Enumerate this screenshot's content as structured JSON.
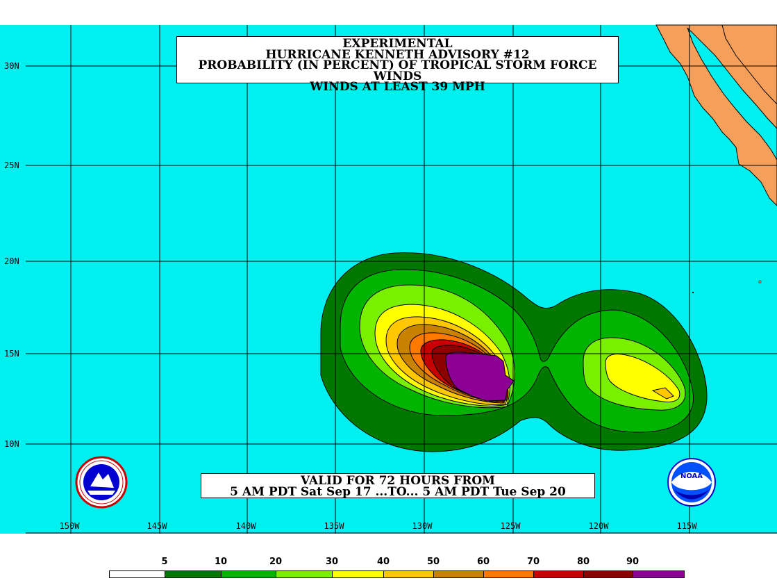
{
  "title": {
    "line1": "EXPERIMENTAL",
    "line2": "HURRICANE KENNETH ADVISORY #12",
    "line3": "PROBABILITY (IN PERCENT) OF TROPICAL STORM FORCE WINDS",
    "line4": "WINDS AT LEAST 39 MPH"
  },
  "valid": {
    "line1": "VALID FOR 72 HOURS FROM",
    "line2": "5 AM PDT Sat Sep 17 ...TO... 5 AM PDT Tue Sep 20"
  },
  "latitude_labels": [
    "30N",
    "25N",
    "20N",
    "15N",
    "10N"
  ],
  "longitude_labels": [
    "150W",
    "145W",
    "140W",
    "135W",
    "130W",
    "125W",
    "120W",
    "115W"
  ],
  "legend": {
    "thresholds": [
      "5",
      "10",
      "20",
      "30",
      "40",
      "50",
      "60",
      "70",
      "80",
      "90"
    ],
    "colors": [
      "#ffffff",
      "#007800",
      "#00b400",
      "#78f000",
      "#ffff00",
      "#ffc800",
      "#c88200",
      "#ff7800",
      "#c80000",
      "#8c0000",
      "#8c0096"
    ]
  },
  "colors": {
    "ocean": "#00f0f0",
    "land": "#f5a05a",
    "grid": "#000000"
  },
  "icons": {
    "nws_logo": "nws-logo-icon",
    "noaa_logo": "noaa-logo-icon"
  },
  "logo_text": {
    "noaa": "NOAA"
  }
}
